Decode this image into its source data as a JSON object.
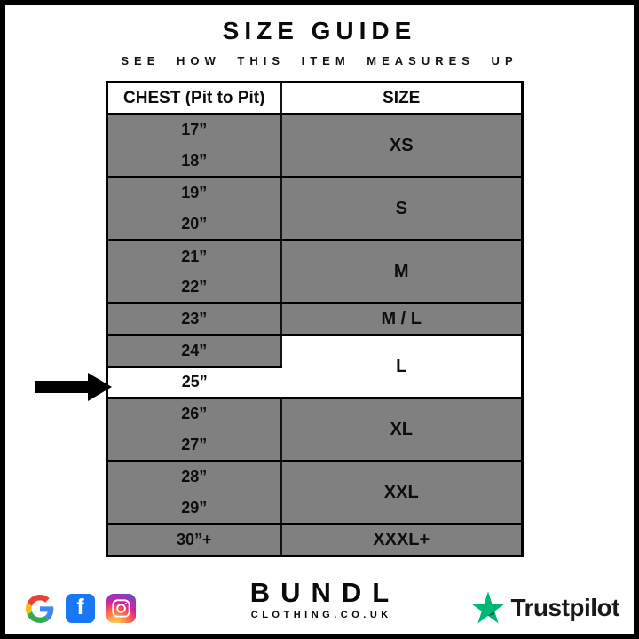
{
  "page": {
    "title": "SIZE GUIDE",
    "subtitle": "SEE HOW THIS ITEM MEASURES UP"
  },
  "chart_data": {
    "type": "table",
    "title": "SIZE GUIDE",
    "subtitle": "SEE HOW THIS ITEM MEASURES UP",
    "columns": [
      "CHEST (Pit to Pit)",
      "SIZE"
    ],
    "rows": [
      [
        "17”",
        "XS"
      ],
      [
        "18”",
        "XS"
      ],
      [
        "19”",
        "S"
      ],
      [
        "20”",
        "S"
      ],
      [
        "21”",
        "M"
      ],
      [
        "22”",
        "M"
      ],
      [
        "23”",
        "M / L"
      ],
      [
        "24”",
        "L"
      ],
      [
        "25”",
        "L"
      ],
      [
        "26”",
        "XL"
      ],
      [
        "27”",
        "XL"
      ],
      [
        "28”",
        "XXL"
      ],
      [
        "29”",
        "XXL"
      ],
      [
        "30”+",
        "XXXL+"
      ]
    ],
    "highlighted_row": "25”",
    "annotations": [
      "black arrow at left points to the 25” / L row"
    ]
  },
  "table": {
    "headers": {
      "chest": "CHEST (Pit to Pit)",
      "size": "SIZE"
    },
    "groups": [
      {
        "size": "XS",
        "chest": [
          "17”",
          "18”"
        ]
      },
      {
        "size": "S",
        "chest": [
          "19”",
          "20”"
        ]
      },
      {
        "size": "M",
        "chest": [
          "21”",
          "22”"
        ]
      },
      {
        "size": "M / L",
        "chest": [
          "23”"
        ]
      },
      {
        "size": "L",
        "chest": [
          "24”",
          "25”"
        ],
        "highlighted": true,
        "highlighted_chest": "25”"
      },
      {
        "size": "XL",
        "chest": [
          "26”",
          "27”"
        ]
      },
      {
        "size": "XXL",
        "chest": [
          "28”",
          "29”"
        ]
      },
      {
        "size": "XXXL+",
        "chest": [
          "30”+"
        ]
      }
    ],
    "colors": {
      "row_gray": "#808080",
      "highlight": "#ffffff",
      "border": "#000000"
    }
  },
  "indicator": {
    "shape": "arrow-right",
    "points_to": "25”",
    "color": "#000000"
  },
  "footer": {
    "brand": {
      "name": "BUNDL",
      "tagline": "CLOTHING.CO.UK"
    },
    "social": {
      "google": {
        "blue": "#4285F4",
        "red": "#EA4335",
        "yellow": "#FBBC05",
        "green": "#34A853"
      },
      "facebook": {
        "color": "#1877F2",
        "glyph": "f"
      },
      "instagram": {
        "gradient": [
          "#fdf497",
          "#fd5949",
          "#d6249f",
          "#515ecf"
        ]
      }
    },
    "trustpilot": {
      "label": "Trustpilot",
      "star_color": "#00B67A",
      "star_shadow_color": "#005128"
    }
  }
}
